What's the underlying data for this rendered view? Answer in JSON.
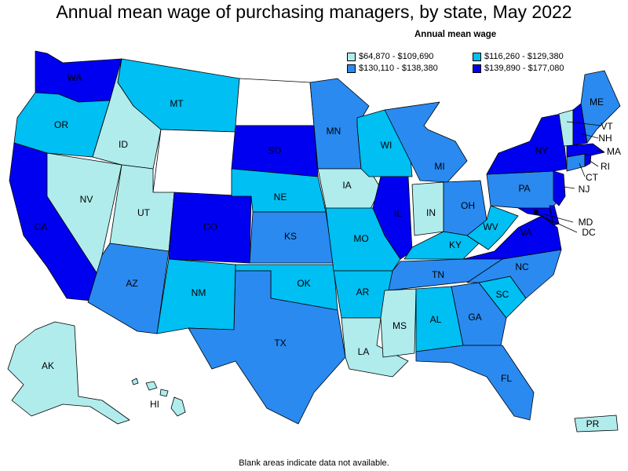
{
  "title": "Annual mean wage of purchasing managers, by state, May 2022",
  "legend": {
    "title": "Annual mean wage",
    "bins": [
      {
        "label": "$64,870 - $109,690",
        "color": "#b0ecec"
      },
      {
        "label": "$116,260 - $129,380",
        "color": "#00bff2"
      },
      {
        "label": "$130,110 - $138,380",
        "color": "#2a8af0"
      },
      {
        "label": "$139,890 - $177,080",
        "color": "#0000f0"
      }
    ]
  },
  "no_data_color": "#ffffff",
  "footnote": "Blank areas indicate data not available.",
  "states": {
    "WA": 3,
    "OR": 1,
    "CA": 3,
    "NV": 0,
    "ID": 0,
    "MT": 1,
    "WY": null,
    "UT": 0,
    "AZ": 2,
    "CO": 3,
    "NM": 1,
    "ND": null,
    "SD": 3,
    "NE": 1,
    "KS": 2,
    "OK": 1,
    "TX": 2,
    "MN": 2,
    "IA": 0,
    "MO": 1,
    "AR": 1,
    "LA": 0,
    "WI": 1,
    "IL": 3,
    "MI": 2,
    "IN": 0,
    "OH": 2,
    "KY": 1,
    "TN": 2,
    "MS": 0,
    "AL": 1,
    "GA": 2,
    "FL": 2,
    "SC": 1,
    "NC": 2,
    "VA": 3,
    "WV": 1,
    "MD": 3,
    "DC": 3,
    "DE": 3,
    "PA": 2,
    "NJ": 3,
    "NY": 3,
    "CT": 2,
    "RI": 3,
    "MA": 3,
    "VT": 0,
    "NH": 3,
    "ME": 2,
    "AK": 0,
    "HI": 0,
    "PR": 0
  }
}
